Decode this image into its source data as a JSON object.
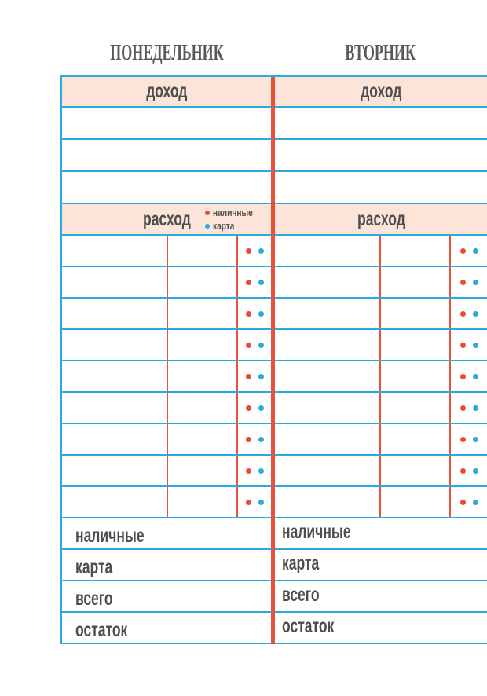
{
  "page": {
    "colors": {
      "blue_line": "#29abe2",
      "red_line": "#e8503a",
      "dot_red": "#ea4b35",
      "dot_blue": "#29abe2",
      "header_bg": "#fce5d8",
      "label_text": "#4d4d4d",
      "title_text": "#595959"
    },
    "columns": [
      {
        "title": "ПОНЕДЕЛЬНИК",
        "income_header": "доход",
        "expense_header": "расход",
        "income_row_count": 3,
        "expense_row_count": 9,
        "legend": [
          {
            "label": "наличные",
            "color": "#ea4b35"
          },
          {
            "label": "карта",
            "color": "#29abe2"
          }
        ],
        "summary": [
          "наличные",
          "карта",
          "всего",
          "остаток"
        ]
      },
      {
        "title": "ВТОРНИК",
        "income_header": "доход",
        "expense_header": "расход",
        "income_row_count": 3,
        "expense_row_count": 9,
        "summary": [
          "наличные",
          "карта",
          "всего",
          "остаток"
        ]
      }
    ]
  }
}
